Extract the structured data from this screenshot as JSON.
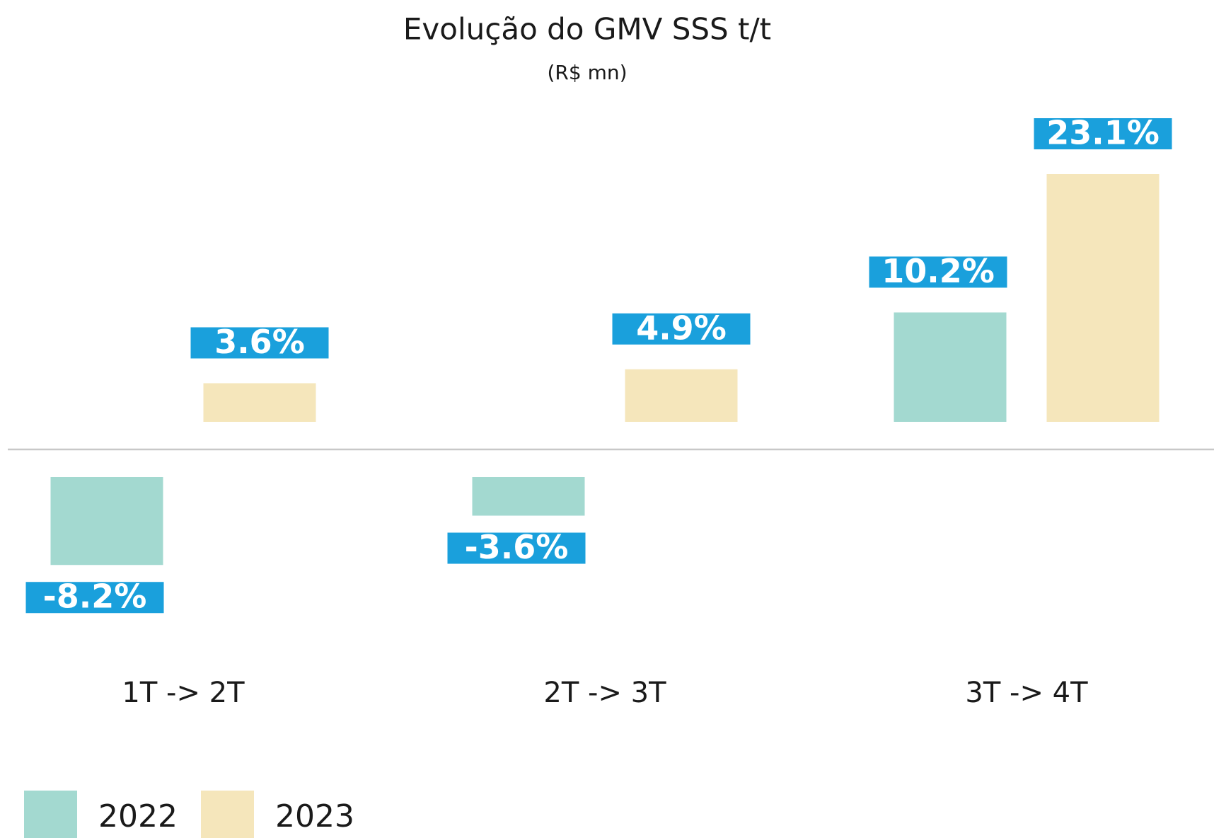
{
  "chart_data": {
    "type": "bar",
    "title": "Evolução do GMV SSS t/t",
    "subtitle": "(R$ mn)",
    "categories": [
      "1T -> 2T",
      "2T -> 3T",
      "3T -> 4T"
    ],
    "series": [
      {
        "name": "2022",
        "color": "#a3d9d0",
        "values": [
          -8.2,
          -3.6,
          10.2
        ],
        "value_labels": [
          "-8.2%",
          "-3.6%",
          "10.2%"
        ]
      },
      {
        "name": "2023",
        "color": "#f5e6bb",
        "values": [
          3.6,
          4.9,
          23.1
        ],
        "value_labels": [
          "3.6%",
          "4.9%",
          "23.1%"
        ]
      }
    ],
    "label_color": "#1aa0dc",
    "legend": "bottom-left"
  }
}
